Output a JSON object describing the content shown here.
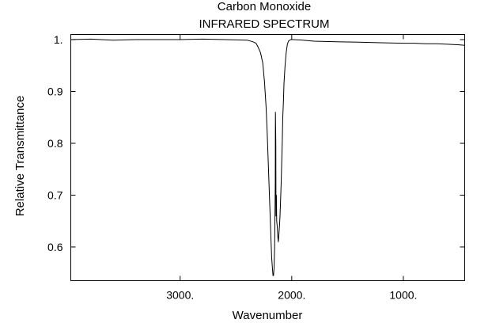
{
  "chart_data": {
    "type": "line",
    "title": "Carbon Monoxide",
    "subtitle": "INFRARED SPECTRUM",
    "xlabel": "Wavenumber",
    "ylabel": "Relative Transmittance",
    "xlim": [
      3980,
      450
    ],
    "ylim": [
      0.535,
      1.01
    ],
    "x_reversed": true,
    "grid": false,
    "legend": "none",
    "x_ticks": [
      {
        "value": 3000,
        "label": "3000."
      },
      {
        "value": 2000,
        "label": "2000."
      },
      {
        "value": 1000,
        "label": "1000."
      }
    ],
    "y_ticks": [
      {
        "value": 1.0,
        "label": "1."
      },
      {
        "value": 0.9,
        "label": "0.9"
      },
      {
        "value": 0.8,
        "label": "0.8"
      },
      {
        "value": 0.7,
        "label": "0.7"
      },
      {
        "value": 0.6,
        "label": "0.6"
      }
    ],
    "series": [
      {
        "color": "#000000",
        "x": [
          3980,
          3800,
          3600,
          3400,
          3200,
          3000,
          2800,
          2600,
          2400,
          2350,
          2320,
          2300,
          2280,
          2260,
          2245,
          2230,
          2220,
          2210,
          2200,
          2190,
          2180,
          2172,
          2168,
          2163,
          2158,
          2153,
          2148,
          2146,
          2143,
          2141,
          2138,
          2135,
          2130,
          2125,
          2120,
          2115,
          2110,
          2105,
          2100,
          2095,
          2090,
          2085,
          2080,
          2075,
          2070,
          2060,
          2050,
          2040,
          2030,
          2010,
          1990,
          1900,
          1800,
          1600,
          1400,
          1200,
          1000,
          900,
          800,
          700,
          600,
          500,
          450
        ],
        "y": [
          1.0,
          1.001,
          0.999,
          1.0,
          1.0,
          1.0,
          1.001,
          1.0,
          0.999,
          0.996,
          0.993,
          0.985,
          0.975,
          0.955,
          0.92,
          0.87,
          0.82,
          0.76,
          0.7,
          0.64,
          0.58,
          0.555,
          0.545,
          0.545,
          0.56,
          0.6,
          0.72,
          0.86,
          0.8,
          0.66,
          0.7,
          0.65,
          0.64,
          0.62,
          0.61,
          0.625,
          0.64,
          0.66,
          0.69,
          0.72,
          0.76,
          0.8,
          0.85,
          0.88,
          0.915,
          0.95,
          0.975,
          0.99,
          0.997,
          1.0,
          1.0,
          0.999,
          0.997,
          0.996,
          0.995,
          0.994,
          0.993,
          0.993,
          0.992,
          0.992,
          0.991,
          0.99,
          0.989
        ]
      }
    ]
  }
}
